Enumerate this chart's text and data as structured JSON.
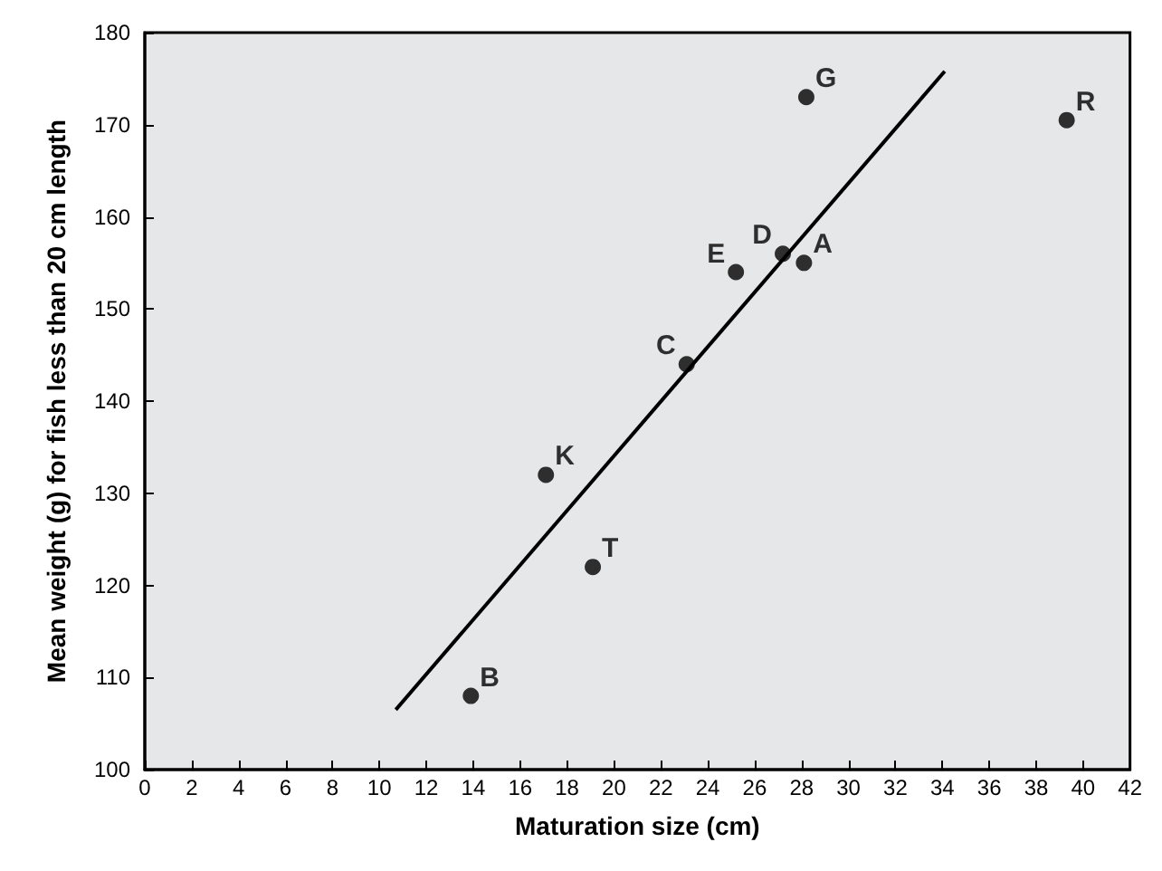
{
  "chart_data": {
    "type": "scatter",
    "xlabel": "Maturation size (cm)",
    "ylabel": "Mean weight (g) for fish less than 20 cm length",
    "xlim": [
      0,
      42
    ],
    "xticks": [
      0,
      2,
      4,
      6,
      8,
      10,
      12,
      14,
      16,
      18,
      20,
      22,
      24,
      26,
      28,
      30,
      32,
      34,
      36,
      38,
      40,
      42
    ],
    "ylim": [
      100,
      180
    ],
    "yticks": [
      100,
      110,
      120,
      130,
      140,
      150,
      160,
      170,
      180
    ],
    "grid": false,
    "marker": "circle",
    "series": [
      {
        "type": "scatter",
        "color": "#000000",
        "x": [
          13.9,
          17.1,
          19.1,
          23.1,
          25.2,
          27.2,
          28.1,
          28.2,
          39.3
        ],
        "values": [
          108,
          132,
          122,
          144,
          154,
          156,
          155,
          173,
          170.5
        ]
      },
      {
        "type": "line",
        "color": "#000000",
        "x": [
          10.7,
          34.1
        ],
        "values": [
          106.5,
          175.8
        ],
        "marker": "none"
      }
    ],
    "annotations": [
      {
        "text": "B",
        "x": 13.9,
        "y": 108
      },
      {
        "text": "K",
        "x": 17.1,
        "y": 132
      },
      {
        "text": "T",
        "x": 19.1,
        "y": 122
      },
      {
        "text": "C",
        "x": 23.1,
        "y": 144
      },
      {
        "text": "E",
        "x": 25.2,
        "y": 154
      },
      {
        "text": "D",
        "x": 27.2,
        "y": 156
      },
      {
        "text": "A",
        "x": 28.1,
        "y": 155
      },
      {
        "text": "G",
        "x": 28.2,
        "y": 173
      },
      {
        "text": "R",
        "x": 39.3,
        "y": 170.5
      }
    ]
  }
}
